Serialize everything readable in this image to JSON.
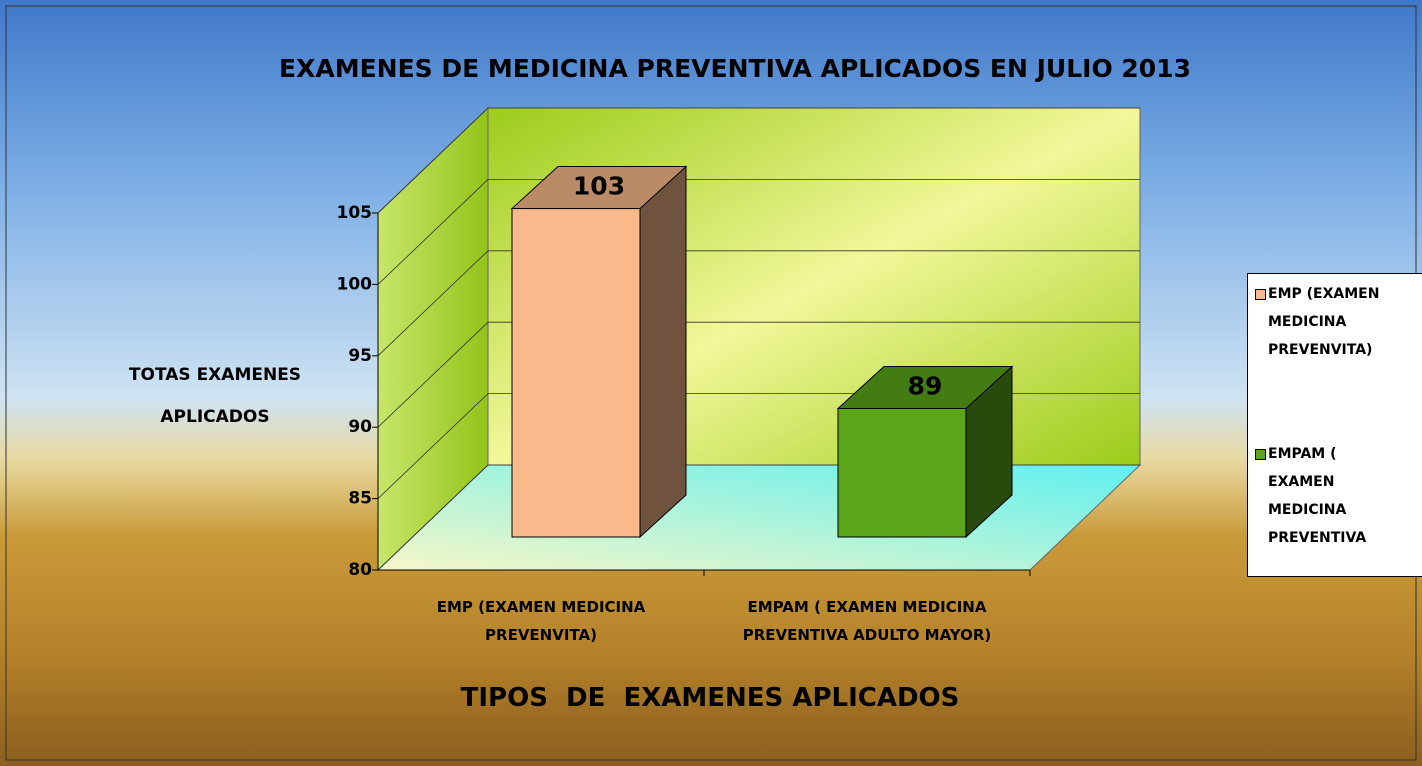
{
  "chart_data": {
    "type": "bar3d",
    "title": "EXAMENES DE MEDICINA PREVENTIVA APLICADOS  EN  JULIO 2013",
    "y_axis_label": "TOTAS EXAMENES APLICADOS",
    "x_axis_label": "TIPOS  DE  EXAMENES APLICADOS",
    "categories": [
      "EMP  (EXAMEN  MEDICINA PREVENVITA)",
      "EMPAM ( EXAMEN MEDICINA PREVENTIVA ADULTO MAYOR)"
    ],
    "series": [
      {
        "name": "EMP  (EXAMEN MEDICINA PREVENVITA)",
        "color": "#f9b98a",
        "values": [
          103,
          null
        ]
      },
      {
        "name": "EMPAM ( EXAMEN MEDICINA PREVENTIVA",
        "color": "#5aa51a",
        "values": [
          null,
          89
        ]
      }
    ],
    "ylim": [
      80,
      105
    ],
    "yticks": [
      80,
      85,
      90,
      95,
      100,
      105
    ],
    "grid": true,
    "legend": "right"
  }
}
